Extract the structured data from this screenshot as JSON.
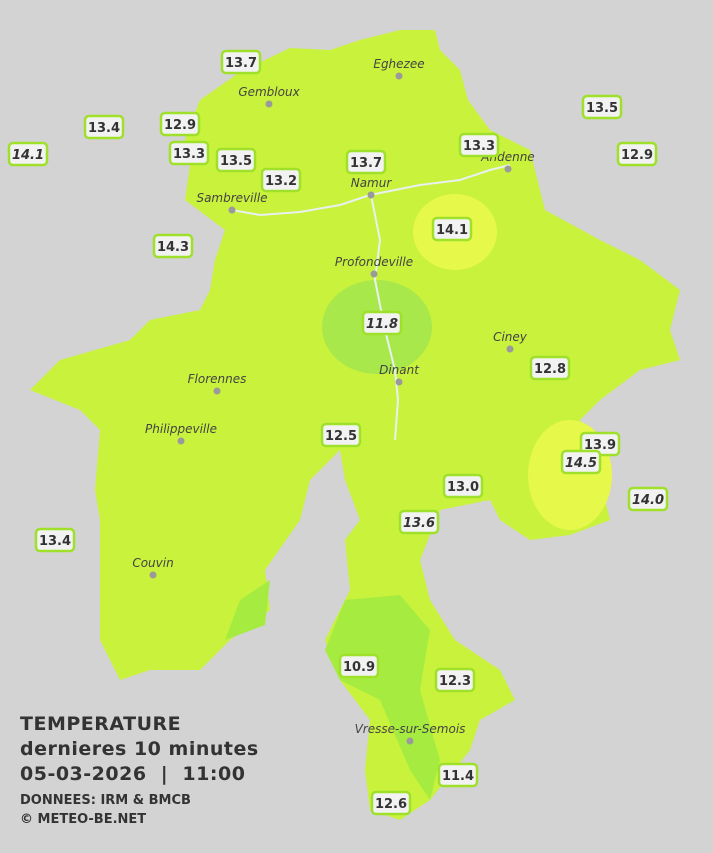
{
  "title": {
    "line1": "TEMPERATURE",
    "line2": "dernieres 10 minutes",
    "line3": "05-03-2026  |  11:00"
  },
  "credits": {
    "source": "DONNEES: IRM & BMCB",
    "copyright": "© METEO-BE.NET"
  },
  "towns": [
    "Eghezee",
    "Gembloux",
    "Andenne",
    "Namur",
    "Sambreville",
    "Profondeville",
    "Ciney",
    "Dinant",
    "Florennes",
    "Philippeville",
    "Couvin",
    "Vresse-sur-Semois"
  ],
  "stations": [
    "13.7",
    "13.4",
    "12.9",
    "14.1",
    "13.3",
    "13.5",
    "13.2",
    "13.7",
    "13.3",
    "13.5",
    "12.9",
    "14.3",
    "14.1",
    "11.8",
    "12.8",
    "12.5",
    "13.9",
    "14.5",
    "13.0",
    "13.6",
    "14.0",
    "13.4",
    "10.9",
    "12.3",
    "11.4",
    "12.6"
  ]
}
